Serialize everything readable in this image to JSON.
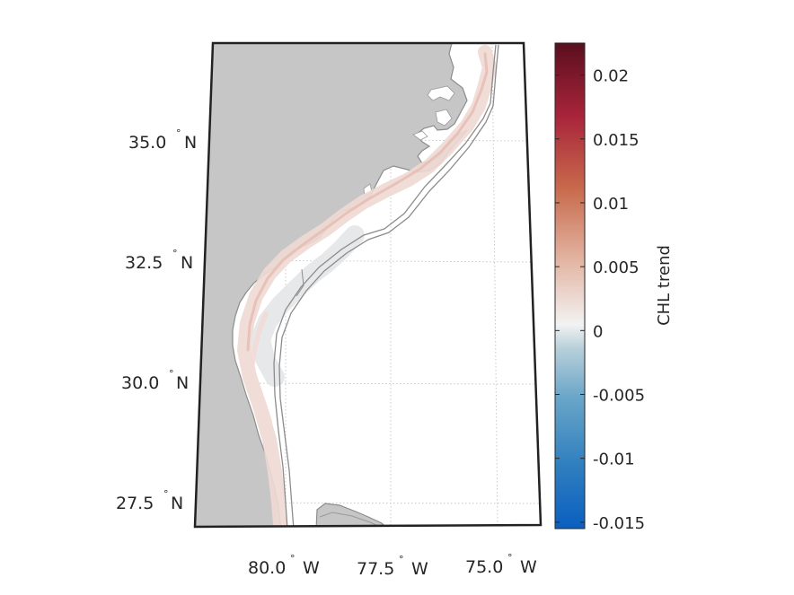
{
  "map": {
    "lat_labels": [
      {
        "text": "35.0",
        "deg": "°",
        "hem": "N"
      },
      {
        "text": "32.5",
        "deg": "°",
        "hem": "N"
      },
      {
        "text": "30.0",
        "deg": "°",
        "hem": "N"
      },
      {
        "text": "27.5",
        "deg": "°",
        "hem": "N"
      }
    ],
    "lon_labels": [
      {
        "text": "80.0",
        "deg": "°",
        "hem": "W"
      },
      {
        "text": "77.5",
        "deg": "°",
        "hem": "W"
      },
      {
        "text": "75.0",
        "deg": "°",
        "hem": "W"
      }
    ],
    "colors": {
      "land": "#c6c6c6",
      "coast": "#8c8c8c",
      "frame": "#222222",
      "grid": "#c8c8c8"
    }
  },
  "colorbar": {
    "label": "CHL trend",
    "ticks": [
      "0.02",
      "0.015",
      "0.01",
      "0.005",
      "0",
      "-0.005",
      "-0.01",
      "-0.015"
    ],
    "tick_values": [
      0.02,
      0.015,
      0.01,
      0.005,
      0,
      -0.005,
      -0.01,
      -0.015
    ],
    "range": [
      -0.0155,
      0.0225
    ],
    "colormap": [
      "#0a5fc0",
      "#2f7fbf",
      "#6aa6c8",
      "#b7cfda",
      "#f2f2f2",
      "#e3b6a4",
      "#c86a4c",
      "#a8243a",
      "#5a0f1e"
    ]
  }
}
